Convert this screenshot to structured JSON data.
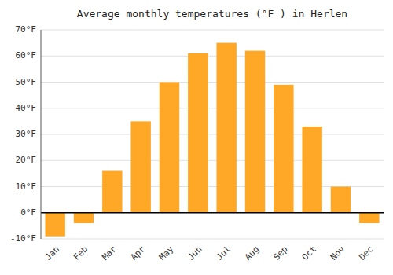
{
  "chart_data": {
    "type": "bar",
    "title": "Average monthly temperatures (°F ) in Herlen",
    "categories": [
      "Jan",
      "Feb",
      "Mar",
      "Apr",
      "May",
      "Jun",
      "Jul",
      "Aug",
      "Sep",
      "Oct",
      "Nov",
      "Dec"
    ],
    "values": [
      -9,
      -4,
      16,
      35,
      50,
      61,
      65,
      62,
      49,
      33,
      10,
      -4
    ],
    "color": "#FFA726",
    "ylim": [
      -10,
      70
    ],
    "yticks": [
      {
        "value": -10,
        "label": "-10°F"
      },
      {
        "value": 0,
        "label": "0°F"
      },
      {
        "value": 10,
        "label": "10°F"
      },
      {
        "value": 20,
        "label": "20°F"
      },
      {
        "value": 30,
        "label": "30°F"
      },
      {
        "value": 40,
        "label": "40°F"
      },
      {
        "value": 50,
        "label": "50°F"
      },
      {
        "value": 60,
        "label": "60°F"
      },
      {
        "value": 70,
        "label": "70°F"
      }
    ],
    "grid": true
  }
}
